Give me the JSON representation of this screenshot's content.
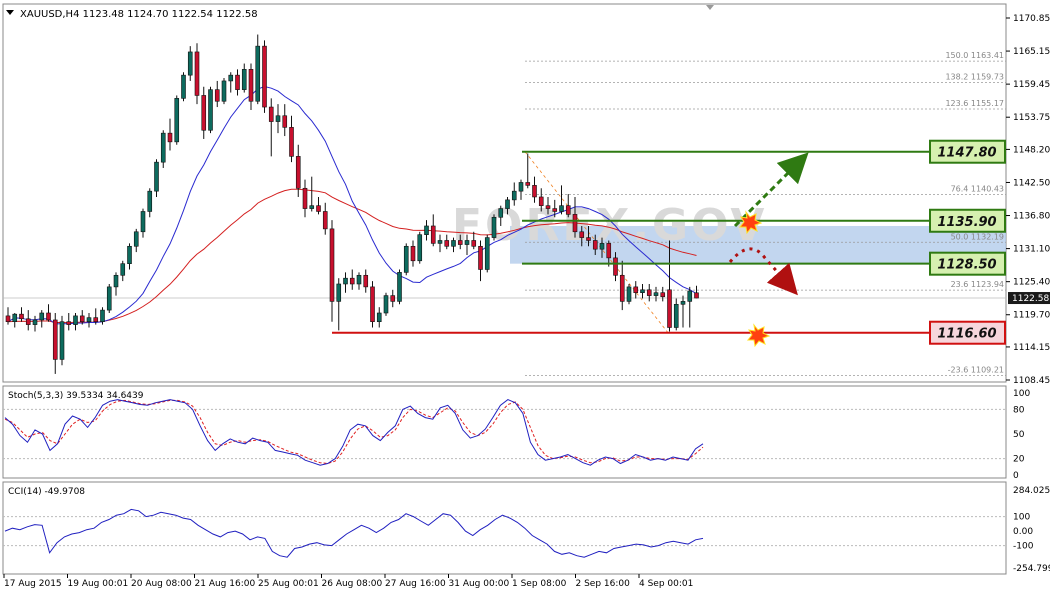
{
  "chart_data": {
    "type": "candlestick",
    "symbol_header": "XAUUSD,H4  1123.48 1124.70 1122.54 1122.58",
    "watermark": "FOREX.GOV",
    "price_axis": {
      "ylim": [
        1108.45,
        1170.85
      ],
      "ticks": [
        "1170.85",
        "1165.15",
        "1159.45",
        "1153.75",
        "1148.20",
        "1142.50",
        "1136.80",
        "1131.10",
        "1125.40",
        "1119.70",
        "1114.15",
        "1108.45"
      ],
      "current_price": "1122.58",
      "current_price_value": 1122.58
    },
    "time_axis": {
      "labels": [
        "17 Aug 2015",
        "19 Aug 00:01",
        "20 Aug 08:00",
        "21 Aug 16:00",
        "25 Aug 00:01",
        "26 Aug 08:00",
        "27 Aug 16:00",
        "31 Aug 00:00",
        "1 Sep 08:00",
        "2 Sep 16:00",
        "4 Sep 00:01"
      ]
    },
    "candles": [
      {
        "o": 1119.5,
        "h": 1121.0,
        "l": 1118.0,
        "c": 1118.5
      },
      {
        "o": 1118.5,
        "h": 1120.0,
        "l": 1117.5,
        "c": 1119.8
      },
      {
        "o": 1119.8,
        "h": 1121.0,
        "l": 1118.5,
        "c": 1119.0
      },
      {
        "o": 1119.0,
        "h": 1120.5,
        "l": 1117.0,
        "c": 1118.0
      },
      {
        "o": 1118.0,
        "h": 1119.5,
        "l": 1116.8,
        "c": 1118.8
      },
      {
        "o": 1118.8,
        "h": 1120.5,
        "l": 1117.5,
        "c": 1120.0
      },
      {
        "o": 1120.0,
        "h": 1121.5,
        "l": 1118.5,
        "c": 1118.8
      },
      {
        "o": 1118.8,
        "h": 1120.0,
        "l": 1109.5,
        "c": 1112.0
      },
      {
        "o": 1112.0,
        "h": 1119.5,
        "l": 1111.0,
        "c": 1118.5
      },
      {
        "o": 1118.5,
        "h": 1120.0,
        "l": 1117.0,
        "c": 1118.0
      },
      {
        "o": 1118.0,
        "h": 1120.0,
        "l": 1117.0,
        "c": 1119.5
      },
      {
        "o": 1119.5,
        "h": 1120.5,
        "l": 1118.0,
        "c": 1118.5
      },
      {
        "o": 1118.5,
        "h": 1120.0,
        "l": 1117.5,
        "c": 1119.2
      },
      {
        "o": 1119.2,
        "h": 1120.8,
        "l": 1118.0,
        "c": 1118.5
      },
      {
        "o": 1118.5,
        "h": 1121.0,
        "l": 1118.0,
        "c": 1120.5
      },
      {
        "o": 1120.5,
        "h": 1125.0,
        "l": 1120.0,
        "c": 1124.5
      },
      {
        "o": 1124.5,
        "h": 1127.0,
        "l": 1123.0,
        "c": 1126.5
      },
      {
        "o": 1126.5,
        "h": 1129.0,
        "l": 1125.5,
        "c": 1128.5
      },
      {
        "o": 1128.5,
        "h": 1132.0,
        "l": 1127.5,
        "c": 1131.5
      },
      {
        "o": 1131.5,
        "h": 1134.5,
        "l": 1130.5,
        "c": 1134.0
      },
      {
        "o": 1134.0,
        "h": 1138.0,
        "l": 1133.0,
        "c": 1137.5
      },
      {
        "o": 1137.5,
        "h": 1141.5,
        "l": 1136.5,
        "c": 1141.0
      },
      {
        "o": 1141.0,
        "h": 1146.5,
        "l": 1140.0,
        "c": 1146.0
      },
      {
        "o": 1146.0,
        "h": 1151.5,
        "l": 1145.0,
        "c": 1151.0
      },
      {
        "o": 1151.0,
        "h": 1153.5,
        "l": 1148.0,
        "c": 1149.5
      },
      {
        "o": 1149.5,
        "h": 1157.5,
        "l": 1149.0,
        "c": 1157.0
      },
      {
        "o": 1157.0,
        "h": 1161.5,
        "l": 1156.5,
        "c": 1161.0
      },
      {
        "o": 1161.0,
        "h": 1166.0,
        "l": 1160.0,
        "c": 1165.0
      },
      {
        "o": 1165.0,
        "h": 1166.5,
        "l": 1156.0,
        "c": 1157.5
      },
      {
        "o": 1157.5,
        "h": 1159.0,
        "l": 1150.0,
        "c": 1151.5
      },
      {
        "o": 1151.5,
        "h": 1159.0,
        "l": 1151.0,
        "c": 1158.5
      },
      {
        "o": 1158.5,
        "h": 1160.0,
        "l": 1155.5,
        "c": 1156.5
      },
      {
        "o": 1156.5,
        "h": 1160.5,
        "l": 1156.0,
        "c": 1160.0
      },
      {
        "o": 1160.0,
        "h": 1161.5,
        "l": 1158.0,
        "c": 1161.0
      },
      {
        "o": 1161.0,
        "h": 1162.0,
        "l": 1157.5,
        "c": 1158.5
      },
      {
        "o": 1158.5,
        "h": 1163.0,
        "l": 1158.0,
        "c": 1162.0
      },
      {
        "o": 1162.0,
        "h": 1163.0,
        "l": 1155.0,
        "c": 1156.5
      },
      {
        "o": 1156.5,
        "h": 1168.0,
        "l": 1156.0,
        "c": 1166.0
      },
      {
        "o": 1166.0,
        "h": 1167.0,
        "l": 1154.5,
        "c": 1155.5
      },
      {
        "o": 1155.5,
        "h": 1157.0,
        "l": 1147.0,
        "c": 1153.0
      },
      {
        "o": 1153.0,
        "h": 1156.0,
        "l": 1151.0,
        "c": 1154.0
      },
      {
        "o": 1154.0,
        "h": 1156.0,
        "l": 1150.5,
        "c": 1152.0
      },
      {
        "o": 1152.0,
        "h": 1154.0,
        "l": 1146.0,
        "c": 1147.0
      },
      {
        "o": 1147.0,
        "h": 1149.0,
        "l": 1140.0,
        "c": 1141.5
      },
      {
        "o": 1141.5,
        "h": 1143.0,
        "l": 1136.5,
        "c": 1138.0
      },
      {
        "o": 1138.0,
        "h": 1143.5,
        "l": 1137.5,
        "c": 1138.5
      },
      {
        "o": 1138.5,
        "h": 1140.0,
        "l": 1137.0,
        "c": 1137.5
      },
      {
        "o": 1137.5,
        "h": 1139.0,
        "l": 1133.5,
        "c": 1134.5
      },
      {
        "o": 1134.5,
        "h": 1136.0,
        "l": 1118.5,
        "c": 1122.0
      },
      {
        "o": 1122.0,
        "h": 1126.0,
        "l": 1117.0,
        "c": 1125.0
      },
      {
        "o": 1125.0,
        "h": 1127.0,
        "l": 1123.5,
        "c": 1126.0
      },
      {
        "o": 1126.0,
        "h": 1127.5,
        "l": 1124.0,
        "c": 1125.0
      },
      {
        "o": 1125.0,
        "h": 1127.0,
        "l": 1124.0,
        "c": 1126.5
      },
      {
        "o": 1126.5,
        "h": 1127.5,
        "l": 1123.5,
        "c": 1124.5
      },
      {
        "o": 1124.5,
        "h": 1125.5,
        "l": 1117.5,
        "c": 1118.5
      },
      {
        "o": 1118.5,
        "h": 1121.0,
        "l": 1117.5,
        "c": 1120.0
      },
      {
        "o": 1120.0,
        "h": 1123.5,
        "l": 1119.5,
        "c": 1123.0
      },
      {
        "o": 1123.0,
        "h": 1124.0,
        "l": 1121.0,
        "c": 1122.0
      },
      {
        "o": 1122.0,
        "h": 1127.5,
        "l": 1121.5,
        "c": 1127.0
      },
      {
        "o": 1127.0,
        "h": 1132.0,
        "l": 1126.5,
        "c": 1131.5
      },
      {
        "o": 1131.5,
        "h": 1132.5,
        "l": 1128.0,
        "c": 1129.0
      },
      {
        "o": 1129.0,
        "h": 1134.0,
        "l": 1128.5,
        "c": 1133.5
      },
      {
        "o": 1133.5,
        "h": 1136.0,
        "l": 1132.5,
        "c": 1135.0
      },
      {
        "o": 1135.0,
        "h": 1137.0,
        "l": 1131.5,
        "c": 1132.0
      },
      {
        "o": 1132.0,
        "h": 1133.5,
        "l": 1130.5,
        "c": 1132.5
      },
      {
        "o": 1132.5,
        "h": 1133.5,
        "l": 1131.0,
        "c": 1131.5
      },
      {
        "o": 1131.5,
        "h": 1133.0,
        "l": 1130.5,
        "c": 1132.5
      },
      {
        "o": 1132.5,
        "h": 1133.5,
        "l": 1131.0,
        "c": 1131.8
      },
      {
        "o": 1131.8,
        "h": 1133.5,
        "l": 1130.0,
        "c": 1132.5
      },
      {
        "o": 1132.5,
        "h": 1134.0,
        "l": 1131.0,
        "c": 1131.5
      },
      {
        "o": 1131.5,
        "h": 1132.5,
        "l": 1125.5,
        "c": 1127.5
      },
      {
        "o": 1127.5,
        "h": 1133.5,
        "l": 1127.0,
        "c": 1133.0
      },
      {
        "o": 1133.0,
        "h": 1137.0,
        "l": 1132.5,
        "c": 1136.5
      },
      {
        "o": 1136.5,
        "h": 1138.5,
        "l": 1135.0,
        "c": 1138.0
      },
      {
        "o": 1138.0,
        "h": 1140.0,
        "l": 1137.0,
        "c": 1139.5
      },
      {
        "o": 1139.5,
        "h": 1142.5,
        "l": 1138.5,
        "c": 1141.0
      },
      {
        "o": 1141.0,
        "h": 1143.0,
        "l": 1139.5,
        "c": 1142.5
      },
      {
        "o": 1142.5,
        "h": 1147.5,
        "l": 1141.5,
        "c": 1142.0
      },
      {
        "o": 1142.0,
        "h": 1143.5,
        "l": 1139.0,
        "c": 1140.0
      },
      {
        "o": 1140.0,
        "h": 1141.5,
        "l": 1137.5,
        "c": 1138.5
      },
      {
        "o": 1138.5,
        "h": 1140.0,
        "l": 1137.0,
        "c": 1138.0
      },
      {
        "o": 1138.0,
        "h": 1139.5,
        "l": 1136.5,
        "c": 1137.5
      },
      {
        "o": 1137.5,
        "h": 1142.0,
        "l": 1137.0,
        "c": 1138.5
      },
      {
        "o": 1138.5,
        "h": 1140.5,
        "l": 1136.5,
        "c": 1137.0
      },
      {
        "o": 1137.0,
        "h": 1140.0,
        "l": 1133.0,
        "c": 1134.0
      },
      {
        "o": 1134.0,
        "h": 1135.0,
        "l": 1131.5,
        "c": 1133.0
      },
      {
        "o": 1133.0,
        "h": 1135.0,
        "l": 1131.5,
        "c": 1132.5
      },
      {
        "o": 1132.5,
        "h": 1133.5,
        "l": 1130.0,
        "c": 1131.0
      },
      {
        "o": 1131.0,
        "h": 1133.0,
        "l": 1129.5,
        "c": 1132.0
      },
      {
        "o": 1132.0,
        "h": 1132.5,
        "l": 1128.0,
        "c": 1129.5
      },
      {
        "o": 1129.5,
        "h": 1130.5,
        "l": 1125.5,
        "c": 1126.5
      },
      {
        "o": 1126.5,
        "h": 1129.0,
        "l": 1120.5,
        "c": 1122.0
      },
      {
        "o": 1122.0,
        "h": 1125.0,
        "l": 1121.5,
        "c": 1124.5
      },
      {
        "o": 1124.5,
        "h": 1125.5,
        "l": 1122.5,
        "c": 1123.5
      },
      {
        "o": 1123.5,
        "h": 1125.0,
        "l": 1122.5,
        "c": 1124.0
      },
      {
        "o": 1124.0,
        "h": 1125.0,
        "l": 1122.0,
        "c": 1123.0
      },
      {
        "o": 1123.0,
        "h": 1124.5,
        "l": 1122.0,
        "c": 1123.5
      },
      {
        "o": 1123.5,
        "h": 1124.5,
        "l": 1122.0,
        "c": 1122.8
      },
      {
        "o": 1124.0,
        "h": 1132.5,
        "l": 1116.8,
        "c": 1117.5
      },
      {
        "o": 1117.5,
        "h": 1122.5,
        "l": 1117.0,
        "c": 1121.5
      },
      {
        "o": 1121.5,
        "h": 1123.0,
        "l": 1117.5,
        "c": 1122.0
      },
      {
        "o": 1122.0,
        "h": 1124.5,
        "l": 1117.5,
        "c": 1123.8
      },
      {
        "o": 1123.48,
        "h": 1124.7,
        "l": 1122.54,
        "c": 1122.58
      }
    ],
    "moving_averages": [
      {
        "color": "#2a2ad0",
        "values": []
      },
      {
        "color": "#d42020",
        "values": []
      }
    ],
    "levels": [
      {
        "label": "1147.80",
        "value": 1147.8,
        "color": "#2f7a12",
        "label_bg": "#d6f0b0",
        "dash": false
      },
      {
        "label": "1135.90",
        "value": 1135.9,
        "color": "#2f7a12",
        "label_bg": "#d6f0b0",
        "dash": false
      },
      {
        "label": "1128.50",
        "value": 1128.5,
        "color": "#2f7a12",
        "label_bg": "#d6f0b0",
        "dash": false
      },
      {
        "label": "1116.60",
        "value": 1116.6,
        "color": "#d01010",
        "label_bg": "#f6d6dc",
        "dash": false
      }
    ],
    "fibonacci": [
      {
        "ratio": "150.0",
        "price": "1163.41",
        "value": 1163.41
      },
      {
        "ratio": "138.2",
        "price": "1159.73",
        "value": 1159.73
      },
      {
        "ratio": "123.6",
        "price": "1155.17",
        "value": 1155.17
      },
      {
        "ratio": "76.4",
        "price": "1140.43",
        "value": 1140.43
      },
      {
        "ratio": "50.0",
        "price": "1132.19",
        "value": 1132.19
      },
      {
        "ratio": "23.6",
        "price": "1123.94",
        "value": 1123.94
      },
      {
        "ratio": "-23.6",
        "price": "1109.21",
        "value": 1109.21
      }
    ],
    "zone": {
      "from": 1128.5,
      "to": 1135.0,
      "color": "#aec8ea"
    },
    "stochastic": {
      "label": "Stoch(5,3,3) 39.5334 34.6439",
      "ticks": [
        "100",
        "80",
        "50",
        "20",
        "0"
      ],
      "ylim": [
        0,
        100
      ],
      "main_color": "#2020c0",
      "signal_color": "#e02020",
      "main": [
        70,
        62,
        48,
        40,
        55,
        50,
        30,
        38,
        62,
        72,
        68,
        58,
        70,
        85,
        90,
        92,
        90,
        88,
        86,
        85,
        88,
        90,
        92,
        90,
        88,
        80,
        60,
        42,
        30,
        38,
        44,
        40,
        38,
        45,
        42,
        40,
        30,
        28,
        26,
        24,
        18,
        15,
        12,
        14,
        20,
        35,
        55,
        62,
        60,
        48,
        42,
        52,
        60,
        80,
        84,
        75,
        70,
        68,
        82,
        85,
        75,
        55,
        45,
        48,
        56,
        70,
        85,
        92,
        88,
        75,
        40,
        25,
        18,
        20,
        22,
        25,
        20,
        15,
        12,
        18,
        22,
        20,
        14,
        18,
        25,
        22,
        18,
        20,
        18,
        22,
        20,
        18,
        32,
        38
      ],
      "signal": [
        68,
        64,
        55,
        46,
        50,
        52,
        42,
        38,
        50,
        62,
        68,
        64,
        66,
        78,
        86,
        90,
        91,
        89,
        87,
        86,
        87,
        89,
        91,
        91,
        89,
        84,
        70,
        52,
        38,
        36,
        40,
        42,
        40,
        42,
        43,
        41,
        36,
        32,
        28,
        26,
        22,
        18,
        15,
        14,
        17,
        28,
        44,
        56,
        60,
        54,
        46,
        48,
        55,
        70,
        80,
        78,
        73,
        70,
        76,
        82,
        78,
        64,
        52,
        48,
        52,
        62,
        76,
        86,
        89,
        80,
        58,
        36,
        24,
        20,
        21,
        23,
        22,
        18,
        15,
        16,
        20,
        21,
        17,
        18,
        22,
        22,
        20,
        20,
        19,
        20,
        20,
        19,
        26,
        34
      ]
    },
    "cci": {
      "label": "CCI(14) -49.9708",
      "ticks": [
        "284.0252",
        "100",
        "0.00",
        "-100",
        "-254.7999"
      ],
      "ylim": [
        -254.7999,
        284.0252
      ],
      "color": "#2020c0",
      "values": [
        0,
        20,
        10,
        30,
        45,
        40,
        -150,
        -80,
        -40,
        -20,
        -10,
        10,
        20,
        60,
        80,
        110,
        120,
        150,
        140,
        100,
        110,
        130,
        120,
        110,
        90,
        80,
        40,
        10,
        -20,
        -40,
        -10,
        0,
        -20,
        -60,
        -40,
        -50,
        -140,
        -170,
        -180,
        -120,
        -110,
        -90,
        -80,
        -95,
        -100,
        -60,
        -20,
        10,
        40,
        20,
        -10,
        20,
        60,
        80,
        120,
        100,
        70,
        40,
        80,
        120,
        110,
        60,
        0,
        -30,
        10,
        40,
        80,
        110,
        90,
        60,
        20,
        -30,
        -60,
        -90,
        -140,
        -160,
        -150,
        -170,
        -180,
        -160,
        -140,
        -150,
        -120,
        -110,
        -100,
        -90,
        -95,
        -110,
        -100,
        -80,
        -70,
        -80,
        -90,
        -60,
        -50
      ]
    }
  },
  "colors": {
    "bull_body": "#0d6b5e",
    "bear_body": "#c8102e",
    "candle_outline": "#111111",
    "grid": "#c8c8c8",
    "axis_text": "#000000",
    "arrow_up": "#2f7a12",
    "arrow_down": "#b01010"
  }
}
